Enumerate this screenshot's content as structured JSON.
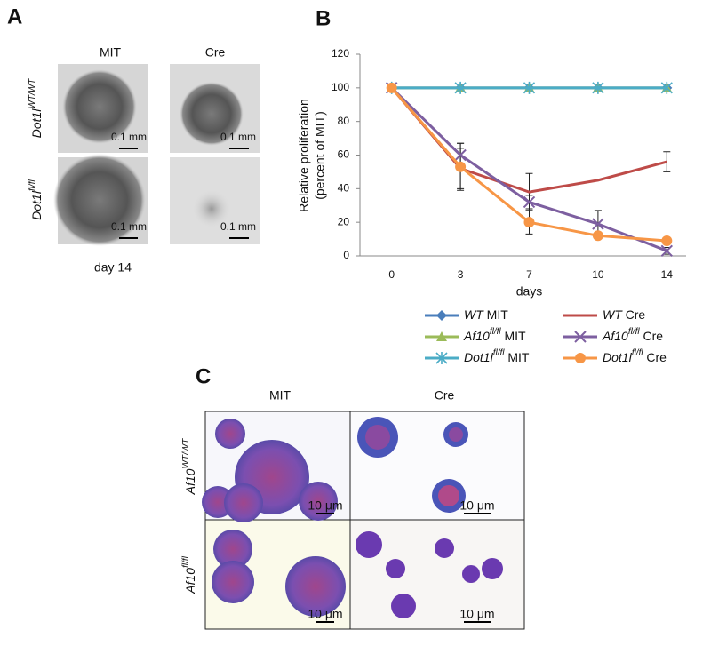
{
  "panel_labels": [
    "A",
    "B",
    "C"
  ],
  "panel_a": {
    "columns": [
      "MIT",
      "Cre"
    ],
    "rows": [
      "Dot1lWT/WT",
      "Dot1lfl/fl"
    ],
    "scale_bars": [
      "0.1 mm",
      "0.1 mm",
      "0.1 mm",
      "0.1 mm"
    ],
    "caption": "day 14"
  },
  "chart_data": {
    "type": "line",
    "x_label": "days",
    "y_label": [
      "Relative proliferation",
      "(percent of MIT)"
    ],
    "categories": [
      "0",
      "3",
      "7",
      "10",
      "14"
    ],
    "ylim": [
      0,
      120
    ],
    "yticks": [
      0,
      20,
      40,
      60,
      80,
      100,
      120
    ],
    "series": [
      {
        "name": "WT MIT",
        "color": "#4a7ebb",
        "marker": "diamond",
        "values": [
          100,
          100,
          100,
          100,
          100
        ]
      },
      {
        "name": "Af10fl/fl MIT",
        "color": "#9bbb59",
        "marker": "triangle",
        "values": [
          100,
          100,
          100,
          100,
          100
        ]
      },
      {
        "name": "Dot1lfl/fl MIT",
        "color": "#4bacc6",
        "marker": "asterisk",
        "values": [
          100,
          100,
          100,
          100,
          100
        ]
      },
      {
        "name": "WT Cre",
        "color": "#be4b48",
        "values": [
          100,
          52,
          38,
          45,
          56
        ],
        "errors": [
          null,
          12,
          11,
          null,
          6
        ]
      },
      {
        "name": "Af10fl/fl Cre",
        "color": "#7d5fa0",
        "marker": "x",
        "values": [
          100,
          60,
          32,
          19,
          3
        ],
        "errors": [
          null,
          7,
          4,
          8,
          2
        ]
      },
      {
        "name": "Dot1lfl/fl Cre",
        "color": "#f79646",
        "marker": "circle",
        "values": [
          100,
          53,
          20,
          12,
          9
        ],
        "errors": [
          null,
          14,
          7,
          1,
          1
        ]
      }
    ]
  },
  "panel_c": {
    "columns": [
      "MIT",
      "Cre"
    ],
    "rows": [
      "Af10WT/WT",
      "Af10fl/fl"
    ],
    "scale_bars": [
      "10 μm",
      "10 μm",
      "10 μm",
      "10 μm"
    ]
  }
}
